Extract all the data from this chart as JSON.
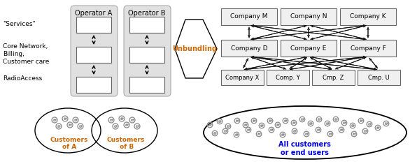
{
  "fig_width": 5.86,
  "fig_height": 2.35,
  "dpi": 100,
  "bg_color": "#ffffff",
  "operator_a_label": "Operator A",
  "operator_b_label": "Operator B",
  "unbundling_label": "Unbundling",
  "services_label": "\"Services\"",
  "core_label": "Core Network,\nBilling,\nCustomer care",
  "radio_label": "RadioAccess",
  "op_panel_color": "#e0e0e0",
  "companies_top": [
    "Company M",
    "Company N",
    "Company K"
  ],
  "companies_mid": [
    "Company D",
    "Company E",
    "Company F"
  ],
  "companies_bot": [
    "Company X",
    "Comp. Y",
    "Cmp. Z",
    "Cmp. U"
  ],
  "label_color_orange": "#cc6600",
  "label_color_blue": "#0000dd",
  "circle_A_label": "Customers\nof A",
  "circle_B_label": "Customers\n of B",
  "ellipse_label": "All customers\nor end users",
  "arrow_color": "#111111",
  "smiley_color": "#888888",
  "box_face": "#ffffff",
  "box_edge": "#666666",
  "right_box_face": "#f0f0f0",
  "right_box_edge": "#666666"
}
